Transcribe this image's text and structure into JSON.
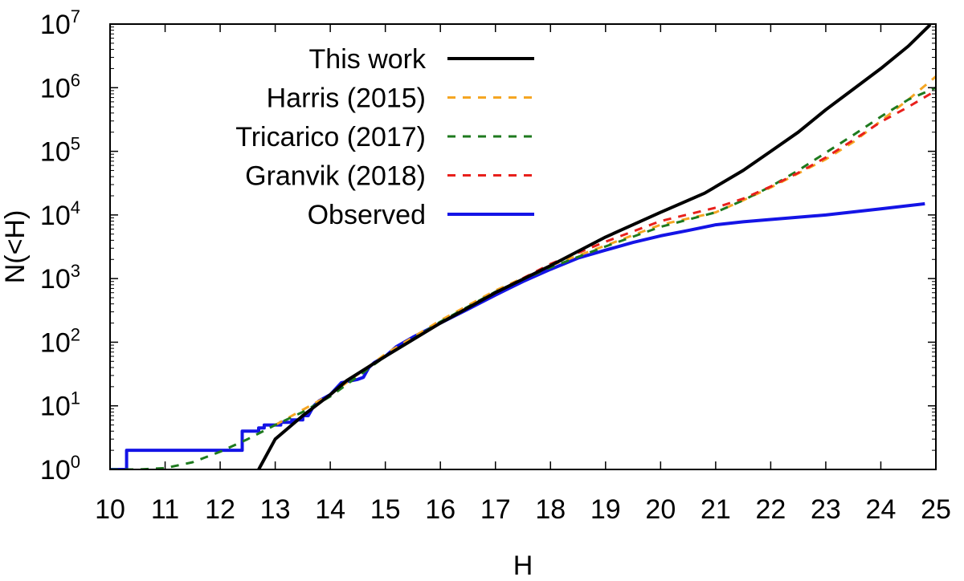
{
  "chart_data": {
    "type": "line",
    "xlabel": "H",
    "ylabel": "N(<H)",
    "xlim": [
      10,
      25
    ],
    "ylim": [
      1,
      10000000
    ],
    "yscale": "log",
    "x_ticks": [
      "10",
      "11",
      "12",
      "13",
      "14",
      "15",
      "16",
      "17",
      "18",
      "19",
      "20",
      "21",
      "22",
      "23",
      "24",
      "25"
    ],
    "y_ticks": [
      {
        "value": 1,
        "base": "10",
        "exp": "0"
      },
      {
        "value": 10,
        "base": "10",
        "exp": "1"
      },
      {
        "value": 100,
        "base": "10",
        "exp": "2"
      },
      {
        "value": 1000,
        "base": "10",
        "exp": "3"
      },
      {
        "value": 10000,
        "base": "10",
        "exp": "4"
      },
      {
        "value": 100000,
        "base": "10",
        "exp": "5"
      },
      {
        "value": 1000000,
        "base": "10",
        "exp": "6"
      },
      {
        "value": 10000000,
        "base": "10",
        "exp": "7"
      }
    ],
    "grid": false,
    "legend_position": "top-left",
    "series": [
      {
        "name": "This work",
        "color": "#000000",
        "style": "solid",
        "x": [
          12.7,
          13.0,
          13.5,
          14.0,
          14.3,
          15.0,
          16.0,
          17.0,
          18.0,
          19.0,
          20.0,
          20.8,
          21.5,
          22.0,
          22.5,
          23.0,
          23.5,
          24.0,
          24.5,
          24.9
        ],
        "y": [
          1,
          3,
          7,
          15,
          25,
          60,
          200,
          600,
          1600,
          4500,
          11000,
          22000,
          50000,
          100000,
          200000,
          450000,
          950000,
          2000000,
          4500000,
          9800000
        ]
      },
      {
        "name": "Harris (2015)",
        "color": "#f5a623",
        "style": "dashed",
        "x": [
          13.0,
          14.0,
          15.0,
          16.0,
          17.0,
          18.0,
          19.0,
          20.0,
          21.0,
          21.5,
          22.0,
          22.5,
          23.0,
          23.5,
          24.0,
          24.5,
          25.0
        ],
        "y": [
          5,
          15,
          65,
          220,
          650,
          1600,
          3300,
          7000,
          11000,
          17000,
          27000,
          45000,
          75000,
          140000,
          300000,
          650000,
          1500000
        ]
      },
      {
        "name": "Tricarico (2017)",
        "color": "#1e7a1e",
        "style": "dashed",
        "x": [
          10.0,
          10.5,
          11.0,
          11.5,
          12.0,
          12.5,
          13.0,
          13.5,
          14.0,
          15.0,
          16.0,
          17.0,
          18.0,
          19.0,
          20.0,
          21.0,
          21.5,
          22.0,
          22.5,
          23.0,
          23.5,
          24.0,
          24.5,
          25.0
        ],
        "y": [
          1,
          1,
          1.05,
          1.3,
          1.9,
          3,
          5,
          8,
          14,
          60,
          210,
          620,
          1500,
          3200,
          6500,
          11000,
          17000,
          28000,
          50000,
          95000,
          180000,
          350000,
          650000,
          1000000
        ]
      },
      {
        "name": "Granvik (2018)",
        "color": "#e8201c",
        "style": "dashed",
        "x": [
          17.0,
          18.0,
          19.0,
          20.0,
          21.0,
          21.5,
          22.0,
          22.5,
          23.0,
          23.5,
          24.0,
          24.5,
          25.0
        ],
        "y": [
          600,
          1700,
          3800,
          8000,
          13000,
          18000,
          28000,
          46000,
          80000,
          150000,
          290000,
          500000,
          900000
        ]
      },
      {
        "name": "Observed",
        "color": "#1414e6",
        "style": "solid",
        "x": [
          10.0,
          10.2,
          10.3,
          10.5,
          11.0,
          11.5,
          12.0,
          12.3,
          12.4,
          12.5,
          12.6,
          12.7,
          12.8,
          12.9,
          13.0,
          13.1,
          13.3,
          13.5,
          13.6,
          13.7,
          13.8,
          14.0,
          14.2,
          14.3,
          14.5,
          14.6,
          14.7,
          14.8,
          15.0,
          15.2,
          15.5,
          16.0,
          16.5,
          17.0,
          17.5,
          18.0,
          18.5,
          19.0,
          19.5,
          20.0,
          20.5,
          21.0,
          21.5,
          22.0,
          23.0,
          24.0,
          24.8
        ],
        "y": [
          1,
          1,
          2,
          2,
          2,
          2,
          2,
          2,
          4,
          4,
          4,
          4.5,
          5,
          5,
          5,
          5.5,
          6,
          7,
          7,
          10,
          12,
          15,
          23,
          24,
          26,
          28,
          40,
          48,
          60,
          85,
          120,
          200,
          330,
          550,
          900,
          1400,
          2100,
          2800,
          3700,
          4700,
          5700,
          7000,
          7800,
          8500,
          10000,
          12500,
          15000
        ]
      }
    ]
  }
}
